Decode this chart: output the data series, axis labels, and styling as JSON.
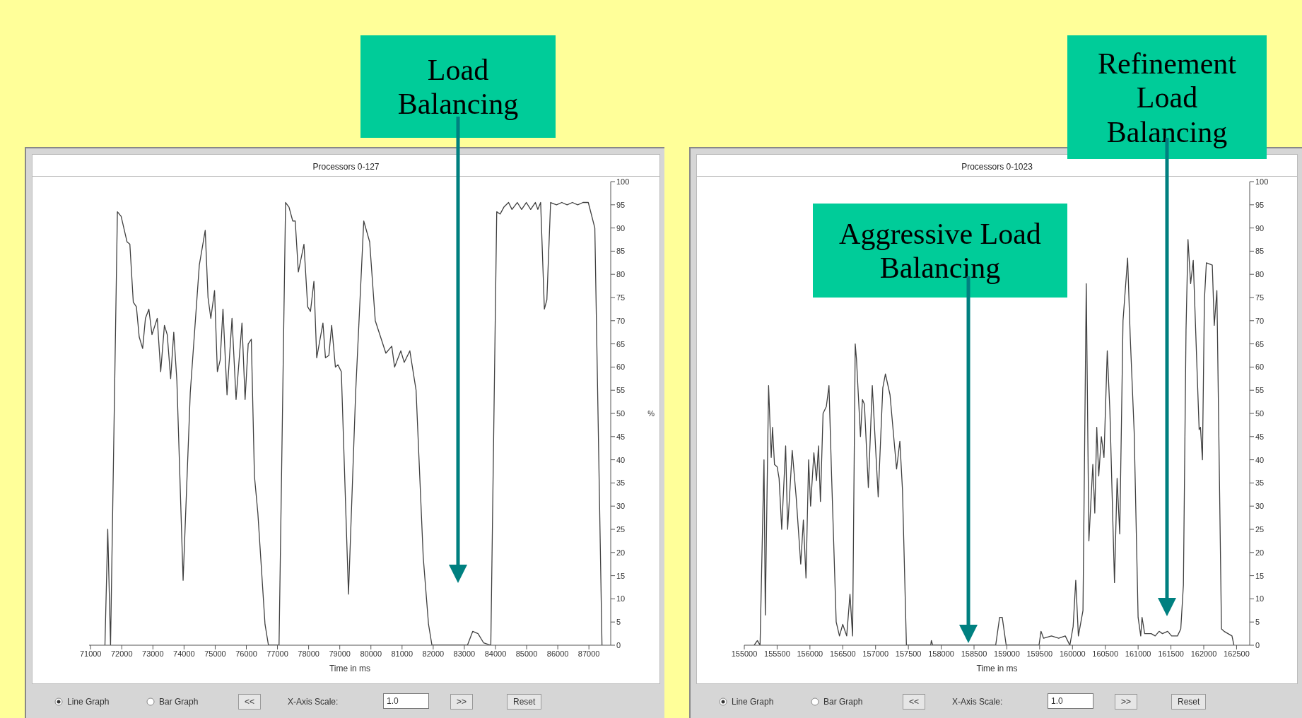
{
  "chart_data": [
    {
      "type": "line",
      "title": "Processors 0-127",
      "xlabel": "Time in ms",
      "ylabel": "%",
      "x": [
        71460,
        71550,
        71640,
        71860,
        71980,
        72170,
        72260,
        72370,
        72470,
        72560,
        72670,
        72760,
        72870,
        72970,
        73140,
        73250,
        73370,
        73460,
        73570,
        73670,
        73770,
        73970,
        74200,
        74490,
        74680,
        74770,
        74860,
        74980,
        75070,
        75160,
        75250,
        75380,
        75540,
        75670,
        75860,
        75960,
        76060,
        76160,
        76260,
        76370,
        76600,
        76710,
        77050,
        77260,
        77370,
        77490,
        77570,
        77670,
        77850,
        77970,
        78060,
        78170,
        78260,
        78460,
        78540,
        78650,
        78740,
        78860,
        78940,
        79050,
        79280,
        79510,
        79770,
        79960,
        80140,
        80480,
        80670,
        80760,
        80960,
        81070,
        81250,
        81450,
        81680,
        81850,
        81960,
        83100,
        83270,
        83440,
        83620,
        83850,
        84040,
        84150,
        84270,
        84420,
        84530,
        84700,
        84840,
        84990,
        85130,
        85280,
        85360,
        85450,
        85570,
        85650,
        85770,
        85960,
        86130,
        86300,
        86470,
        86640,
        86810,
        86980,
        87190,
        87420
      ],
      "values": [
        0,
        25,
        0,
        93.5,
        92.5,
        87,
        86.5,
        74,
        73,
        66.5,
        64,
        70.5,
        72.5,
        67,
        70.5,
        59,
        69,
        67,
        57.5,
        67.5,
        57,
        14,
        54.5,
        82,
        89.5,
        75,
        70.5,
        76.5,
        59,
        61.5,
        72.5,
        54,
        70.5,
        53,
        69.5,
        53,
        65,
        66,
        36.5,
        28.5,
        4.5,
        0,
        0,
        95.5,
        94.5,
        91.5,
        91.5,
        80.5,
        86.5,
        73,
        72,
        78.5,
        62,
        69.5,
        62,
        62.5,
        69,
        60,
        60.5,
        59,
        11,
        54.5,
        91.5,
        87,
        70,
        63,
        64.5,
        60,
        63.5,
        61,
        63.5,
        55,
        19,
        4.5,
        0,
        0,
        3,
        2.5,
        0.5,
        0,
        93.5,
        93,
        94.5,
        95.5,
        94,
        95.5,
        94,
        95.5,
        94,
        95.5,
        94,
        95.5,
        72.5,
        74.5,
        95.5,
        95,
        95.5,
        95,
        95.5,
        95,
        95.5,
        95.5,
        90,
        0
      ],
      "color": "#404040",
      "marker": "none",
      "grid": false,
      "legend": false,
      "xlim": [
        70950,
        87700
      ],
      "xticks": [
        71000,
        72000,
        73000,
        74000,
        75000,
        76000,
        77000,
        78000,
        79000,
        80000,
        81000,
        82000,
        83000,
        84000,
        85000,
        86000,
        87000
      ],
      "ylim": [
        0,
        100
      ],
      "yticks": [
        0,
        5,
        10,
        15,
        20,
        25,
        30,
        35,
        40,
        45,
        50,
        55,
        60,
        65,
        70,
        75,
        80,
        85,
        90,
        95,
        100
      ],
      "annotations": [
        "Load Balancing",
        "Line Graph",
        "Bar Graph",
        "<<",
        "X-Axis Scale:",
        "1.0",
        ">>",
        "Reset"
      ]
    },
    {
      "type": "line",
      "title": "Processors 0-1023",
      "xlabel": "Time in ms",
      "x": [
        155150,
        155200,
        155240,
        155290,
        155300,
        155320,
        155370,
        155410,
        155430,
        155460,
        155500,
        155530,
        155570,
        155630,
        155660,
        155730,
        155790,
        155860,
        155900,
        155940,
        155980,
        156010,
        156060,
        156100,
        156130,
        156160,
        156200,
        156250,
        156290,
        156330,
        156400,
        156450,
        156500,
        156560,
        156610,
        156650,
        156690,
        156710,
        156770,
        156800,
        156830,
        156890,
        156950,
        157040,
        157110,
        157150,
        157220,
        157320,
        157370,
        157410,
        157470,
        157840,
        157850,
        157870,
        158830,
        158890,
        158930,
        158990,
        159490,
        159520,
        159560,
        159680,
        159790,
        159890,
        159960,
        160010,
        160050,
        160090,
        160160,
        160210,
        160250,
        160310,
        160340,
        160370,
        160400,
        160440,
        160480,
        160530,
        160570,
        160640,
        160680,
        160720,
        160770,
        160840,
        160880,
        160940,
        161000,
        161040,
        161060,
        161100,
        161200,
        161260,
        161320,
        161370,
        161450,
        161510,
        161600,
        161650,
        161690,
        161730,
        161760,
        161800,
        161840,
        161900,
        161930,
        161950,
        161980,
        162010,
        162040,
        162130,
        162160,
        162200,
        162270,
        162310,
        162370,
        162430,
        162460
      ],
      "values": [
        0,
        1,
        0,
        33.5,
        40,
        6.5,
        56,
        40.5,
        47,
        39,
        38.5,
        36,
        25,
        43,
        25,
        42,
        32,
        17.5,
        27,
        14.5,
        40,
        30,
        41.5,
        35.5,
        43,
        31,
        50,
        51.5,
        56,
        36.5,
        5,
        2,
        4.5,
        2,
        11,
        2,
        65,
        61.5,
        45,
        53,
        52,
        34,
        56,
        32,
        55.5,
        58.5,
        54,
        38,
        44,
        33.5,
        0,
        0,
        1,
        0,
        0,
        6,
        6,
        0,
        0,
        3,
        1.5,
        2,
        1.5,
        2,
        0,
        4,
        14,
        2,
        7.5,
        78,
        22.5,
        39,
        28.5,
        47,
        36.5,
        45,
        40.5,
        63.5,
        50.5,
        13.5,
        36,
        24,
        70,
        83.5,
        66.5,
        46,
        6,
        2,
        6,
        2.5,
        2.5,
        2,
        3,
        2.5,
        3,
        2,
        2,
        3.5,
        13,
        68,
        87.5,
        78,
        83,
        58.5,
        46.5,
        47,
        40,
        74.5,
        82.5,
        82,
        69,
        76.5,
        3.5,
        3,
        2.5,
        2,
        0
      ],
      "color": "#404040",
      "marker": "none",
      "grid": false,
      "legend": false,
      "xlim": [
        155000,
        162700
      ],
      "xticks": [
        155000,
        155500,
        156000,
        156500,
        157000,
        157500,
        158000,
        158500,
        159000,
        159500,
        160000,
        160500,
        161000,
        161500,
        162000,
        162500
      ],
      "ylim": [
        0,
        100
      ],
      "yticks": [
        0,
        5,
        10,
        15,
        20,
        25,
        30,
        35,
        40,
        45,
        50,
        55,
        60,
        65,
        70,
        75,
        80,
        85,
        90,
        95,
        100
      ],
      "annotations": [
        "Aggressive Load Balancing",
        "Refinement Load Balancing",
        "Line Graph",
        "Bar Graph",
        "<<",
        "X-Axis Scale:",
        "1.0",
        ">>",
        "Reset"
      ]
    }
  ]
}
